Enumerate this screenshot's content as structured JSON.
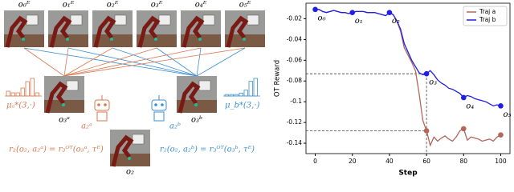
{
  "diagram": {
    "expert_labels": [
      "o₀ᴱ",
      "o₁ᴱ",
      "o₂ᴱ",
      "o₃ᴱ",
      "o₄ᴱ",
      "o₅ᴱ"
    ],
    "obs_a": "o₃ᵃ",
    "obs_b": "o₃ᵇ",
    "obs_2": "o₂",
    "mu_a": "μₐ*(3,·)",
    "mu_b": "μ_b*(3,·)",
    "mu_a_bars": [
      3,
      2,
      2,
      5,
      9,
      11,
      2
    ],
    "mu_b_bars": [
      1,
      1,
      1,
      2,
      4,
      10,
      12
    ],
    "action_a": "a₂ᵃ",
    "action_b": "a₂ᵇ",
    "eq_a": "r₂(o₂, a₂ᵃ) = r₃ᴼᵀ(o₃ᵃ, τᴱ)",
    "eq_b": "r₂(o₂, a₂ᵇ) = r₃ᴼᵀ(o₃ᵇ, τᴱ)"
  },
  "chart_data": {
    "type": "line",
    "x_label": "Step",
    "y_label": "OT Reward",
    "x": [
      0,
      2,
      4,
      6,
      8,
      10,
      12,
      14,
      16,
      18,
      20,
      22,
      24,
      26,
      28,
      30,
      32,
      34,
      36,
      38,
      40,
      42,
      44,
      46,
      48,
      50,
      52,
      54,
      56,
      58,
      60,
      62,
      64,
      66,
      68,
      70,
      72,
      74,
      76,
      78,
      80,
      82,
      84,
      86,
      88,
      90,
      92,
      94,
      96,
      98,
      100
    ],
    "series": [
      {
        "name": "Traj a",
        "color": "#b5655a",
        "values": [
          -0.011,
          -0.011,
          -0.013,
          -0.014,
          -0.013,
          -0.012,
          -0.013,
          -0.014,
          -0.014,
          -0.015,
          -0.014,
          -0.013,
          -0.013,
          -0.013,
          -0.014,
          -0.014,
          -0.014,
          -0.015,
          -0.016,
          -0.017,
          -0.014,
          -0.016,
          -0.022,
          -0.032,
          -0.048,
          -0.055,
          -0.062,
          -0.07,
          -0.092,
          -0.118,
          -0.128,
          -0.142,
          -0.134,
          -0.138,
          -0.135,
          -0.133,
          -0.136,
          -0.138,
          -0.134,
          -0.128,
          -0.126,
          -0.137,
          -0.134,
          -0.135,
          -0.136,
          -0.138,
          -0.137,
          -0.136,
          -0.138,
          -0.134,
          -0.132
        ],
        "markers": [
          {
            "x": 60,
            "y": -0.128
          },
          {
            "x": 80,
            "y": -0.126
          },
          {
            "x": 100,
            "y": -0.132
          }
        ]
      },
      {
        "name": "Traj b",
        "color": "#1f1fe6",
        "values": [
          -0.011,
          -0.011,
          -0.013,
          -0.014,
          -0.013,
          -0.012,
          -0.013,
          -0.014,
          -0.014,
          -0.015,
          -0.014,
          -0.013,
          -0.013,
          -0.013,
          -0.014,
          -0.014,
          -0.014,
          -0.015,
          -0.016,
          -0.017,
          -0.014,
          -0.016,
          -0.022,
          -0.03,
          -0.044,
          -0.052,
          -0.06,
          -0.066,
          -0.072,
          -0.074,
          -0.073,
          -0.07,
          -0.074,
          -0.079,
          -0.082,
          -0.084,
          -0.087,
          -0.088,
          -0.09,
          -0.092,
          -0.096,
          -0.094,
          -0.095,
          -0.097,
          -0.098,
          -0.099,
          -0.1,
          -0.102,
          -0.104,
          -0.103,
          -0.104
        ],
        "markers": [
          {
            "x": 0,
            "y": -0.011
          },
          {
            "x": 20,
            "y": -0.014
          },
          {
            "x": 40,
            "y": -0.014
          },
          {
            "x": 60,
            "y": -0.073
          },
          {
            "x": 80,
            "y": -0.096
          },
          {
            "x": 100,
            "y": -0.104
          }
        ]
      }
    ],
    "annotations": [
      {
        "text": "o₀",
        "x": 0,
        "y": -0.011
      },
      {
        "text": "o₁",
        "x": 20,
        "y": -0.014
      },
      {
        "text": "o₂",
        "x": 40,
        "y": -0.014
      },
      {
        "text": "o₃",
        "x": 60,
        "y": -0.073
      },
      {
        "text": "o₄",
        "x": 80,
        "y": -0.096
      },
      {
        "text": "o₅",
        "x": 100,
        "y": -0.104
      }
    ],
    "reference_lines": [
      {
        "x": 60,
        "y": -0.073
      },
      {
        "x": 60,
        "y": -0.128
      }
    ],
    "xlim": [
      -5,
      105
    ],
    "ylim": [
      -0.15,
      -0.005
    ],
    "xticks": [
      0,
      20,
      40,
      60,
      80,
      100
    ],
    "yticks": [
      -0.14,
      -0.12,
      -0.1,
      -0.08,
      -0.06,
      -0.04,
      -0.02
    ],
    "legend": "upper right"
  }
}
